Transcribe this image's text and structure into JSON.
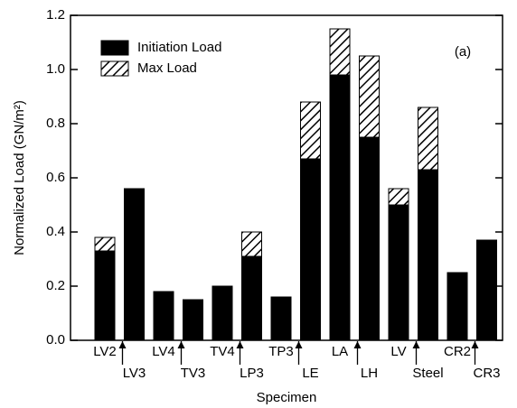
{
  "chart_data": {
    "type": "stacked_bar",
    "annotation": "(a)",
    "xlabel": "Specimen",
    "ylabel": "Normalized Load (GN/m²)",
    "categories": [
      "LV2",
      "LV3",
      "LV4",
      "TV3",
      "TV4",
      "LP3",
      "TP3",
      "LE",
      "LA",
      "LH",
      "LV",
      "Steel",
      "CR2",
      "CR3"
    ],
    "series": [
      {
        "name": "Initiation Load",
        "color": "#000000",
        "values": [
          0.33,
          0.56,
          0.18,
          0.15,
          0.2,
          0.31,
          0.16,
          0.67,
          0.98,
          0.75,
          0.5,
          0.63,
          0.25,
          0.37
        ]
      },
      {
        "name": "Max Load",
        "color": "hatched",
        "values": [
          0.05,
          null,
          null,
          null,
          null,
          0.09,
          null,
          0.21,
          0.17,
          0.3,
          0.06,
          0.23,
          null,
          null
        ]
      }
    ],
    "ylim": [
      0,
      1.2
    ],
    "yticks": [
      {
        "value": 0,
        "label": "0.0"
      },
      0.2,
      0.4,
      0.6,
      0.8,
      {
        "value": 1,
        "label": "1.0"
      },
      1.2
    ],
    "legend": "upper left"
  }
}
